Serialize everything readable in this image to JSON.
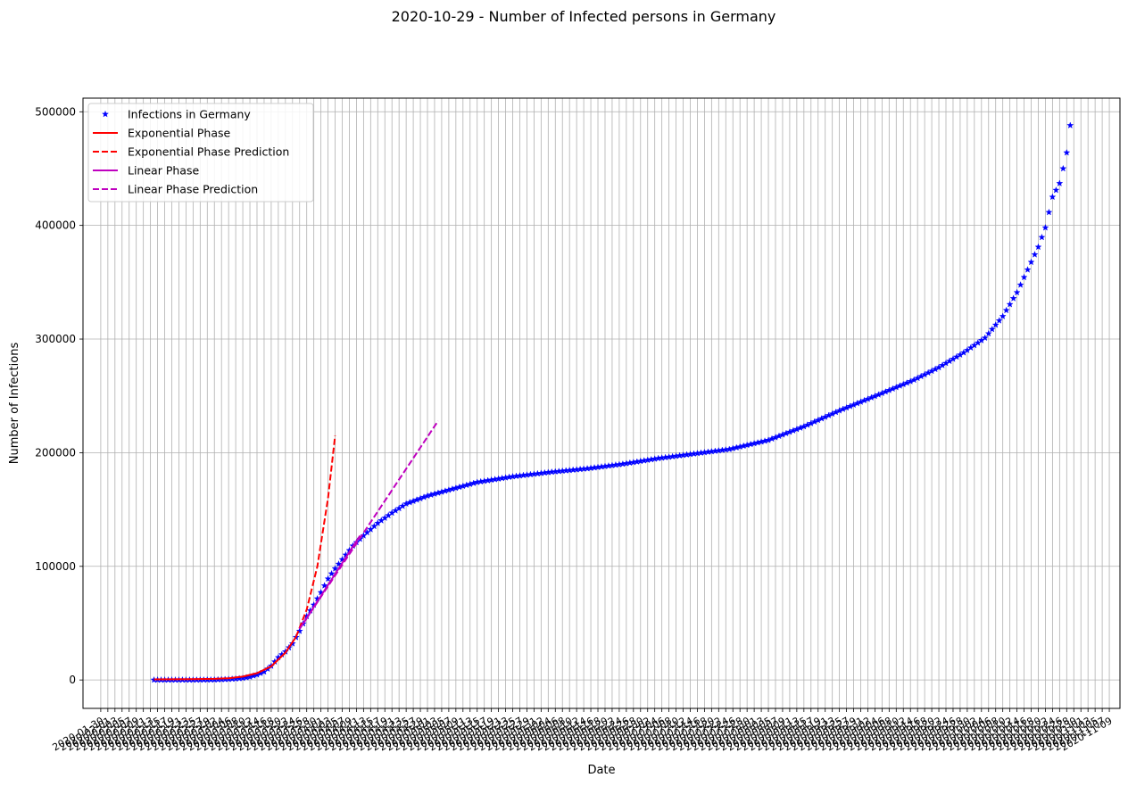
{
  "chart_data": {
    "type": "line",
    "title": "2020-10-29 - Number of Infected persons in Germany",
    "xlabel": "Date",
    "ylabel": "Number of Infections",
    "x_axis": {
      "type": "date",
      "start": "2020-01-30",
      "end": "2020-11-09",
      "tick_step_days": 2
    },
    "ylim": [
      -25000,
      512000
    ],
    "yticks": [
      0,
      100000,
      200000,
      300000,
      400000,
      500000
    ],
    "grid": true,
    "legend_position": "top-left",
    "legend": [
      {
        "label": "Infections in Germany",
        "color": "#0000ff",
        "style": "star-marker"
      },
      {
        "label": "Exponential Phase",
        "color": "#ff0000",
        "style": "solid"
      },
      {
        "label": "Exponential Phase Prediction",
        "color": "#ff0000",
        "style": "dashed"
      },
      {
        "label": "Linear Phase",
        "color": "#bf00bf",
        "style": "solid"
      },
      {
        "label": "Linear Phase Prediction",
        "color": "#bf00bf",
        "style": "dashed"
      }
    ],
    "series": [
      {
        "name": "Infections in Germany",
        "color": "#0000ff",
        "start_date": "2020-02-14",
        "end_date": "2020-10-29",
        "points": [
          [
            "2020-02-14",
            16
          ],
          [
            "2020-02-26",
            27
          ],
          [
            "2020-03-02",
            157
          ],
          [
            "2020-03-06",
            668
          ],
          [
            "2020-03-08",
            1040
          ],
          [
            "2020-03-10",
            1565
          ],
          [
            "2020-03-12",
            2740
          ],
          [
            "2020-03-14",
            4600
          ],
          [
            "2020-03-16",
            7250
          ],
          [
            "2020-03-18",
            12300
          ],
          [
            "2020-03-20",
            19800
          ],
          [
            "2020-03-22",
            24900
          ],
          [
            "2020-03-24",
            32000
          ],
          [
            "2020-03-26",
            43000
          ],
          [
            "2020-03-28",
            56000
          ],
          [
            "2020-03-30",
            66000
          ],
          [
            "2020-04-01",
            77000
          ],
          [
            "2020-04-03",
            89000
          ],
          [
            "2020-04-05",
            98000
          ],
          [
            "2020-04-07",
            106000
          ],
          [
            "2020-04-10",
            118000
          ],
          [
            "2020-04-13",
            127000
          ],
          [
            "2020-04-17",
            138000
          ],
          [
            "2020-04-21",
            147000
          ],
          [
            "2020-04-25",
            155000
          ],
          [
            "2020-05-01",
            162000
          ],
          [
            "2020-05-08",
            168000
          ],
          [
            "2020-05-15",
            174000
          ],
          [
            "2020-05-25",
            179000
          ],
          [
            "2020-06-05",
            183000
          ],
          [
            "2020-06-15",
            186000
          ],
          [
            "2020-06-25",
            190000
          ],
          [
            "2020-07-05",
            195000
          ],
          [
            "2020-07-15",
            199000
          ],
          [
            "2020-07-25",
            203000
          ],
          [
            "2020-08-05",
            211000
          ],
          [
            "2020-08-15",
            223000
          ],
          [
            "2020-08-25",
            237000
          ],
          [
            "2020-09-05",
            251000
          ],
          [
            "2020-09-15",
            264000
          ],
          [
            "2020-09-22",
            275000
          ],
          [
            "2020-09-29",
            288000
          ],
          [
            "2020-10-05",
            301000
          ],
          [
            "2020-10-10",
            320000
          ],
          [
            "2020-10-14",
            341000
          ],
          [
            "2020-10-17",
            361000
          ],
          [
            "2020-10-20",
            381000
          ],
          [
            "2020-10-22",
            398000
          ],
          [
            "2020-10-24",
            425000
          ],
          [
            "2020-10-26",
            437000
          ],
          [
            "2020-10-27",
            450000
          ],
          [
            "2020-10-28",
            464000
          ],
          [
            "2020-10-29",
            488000
          ]
        ]
      },
      {
        "name": "Exponential Phase",
        "color": "#ff0000",
        "style": "solid",
        "points": [
          [
            "2020-02-14",
            500
          ],
          [
            "2020-02-24",
            700
          ],
          [
            "2020-03-02",
            1000
          ],
          [
            "2020-03-06",
            1500
          ],
          [
            "2020-03-10",
            3000
          ],
          [
            "2020-03-14",
            6000
          ],
          [
            "2020-03-18",
            12000
          ],
          [
            "2020-03-22",
            24000
          ],
          [
            "2020-03-25",
            38000
          ]
        ]
      },
      {
        "name": "Exponential Phase Prediction",
        "color": "#ff0000",
        "style": "dashed",
        "points": [
          [
            "2020-03-25",
            38000
          ],
          [
            "2020-03-28",
            62000
          ],
          [
            "2020-03-31",
            100000
          ],
          [
            "2020-04-03",
            160000
          ],
          [
            "2020-04-05",
            215000
          ]
        ]
      },
      {
        "name": "Linear Phase",
        "color": "#bf00bf",
        "style": "solid",
        "points": [
          [
            "2020-03-26",
            45000
          ],
          [
            "2020-04-12",
            127000
          ]
        ]
      },
      {
        "name": "Linear Phase Prediction",
        "color": "#bf00bf",
        "style": "dashed",
        "points": [
          [
            "2020-03-26",
            45000
          ],
          [
            "2020-05-04",
            228000
          ]
        ]
      }
    ]
  }
}
